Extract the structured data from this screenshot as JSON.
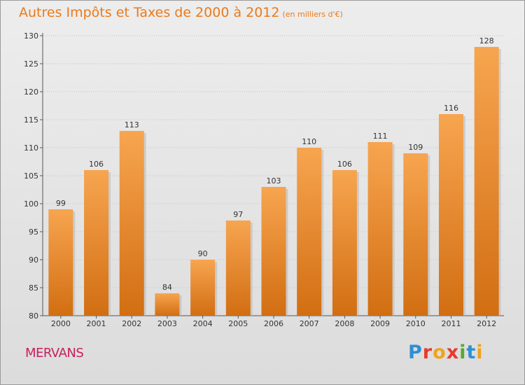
{
  "header": {
    "title": "Autres Impôts et Taxes de 2000 à 2012",
    "subtitle": "(en milliers d'€)"
  },
  "footer": {
    "city": "MERVANS",
    "logo_letters": [
      {
        "char": "P",
        "color": "#2e8fd6"
      },
      {
        "char": "r",
        "color": "#e83a2c"
      },
      {
        "char": "o",
        "color": "#f2a21b"
      },
      {
        "char": "x",
        "color": "#e83a2c"
      },
      {
        "char": "i",
        "color": "#5aa832"
      },
      {
        "char": "t",
        "color": "#2e8fd6"
      },
      {
        "char": "i",
        "color": "#f2a21b"
      }
    ]
  },
  "chart_data": {
    "type": "bar",
    "title": "Autres Impôts et Taxes de 2000 à 2012",
    "subtitle": "(en milliers d'€)",
    "xlabel": "",
    "ylabel": "",
    "categories": [
      "2000",
      "2001",
      "2002",
      "2003",
      "2004",
      "2005",
      "2006",
      "2007",
      "2008",
      "2009",
      "2010",
      "2011",
      "2012"
    ],
    "values": [
      99,
      106,
      113,
      84,
      90,
      97,
      103,
      110,
      106,
      111,
      109,
      116,
      128
    ],
    "ylim": [
      80,
      130
    ],
    "yticks": [
      80,
      85,
      90,
      95,
      100,
      105,
      110,
      115,
      120,
      125,
      130
    ],
    "grid": true,
    "bar_color": "#f29a3c",
    "bar_color_dark": "#d36f12"
  }
}
